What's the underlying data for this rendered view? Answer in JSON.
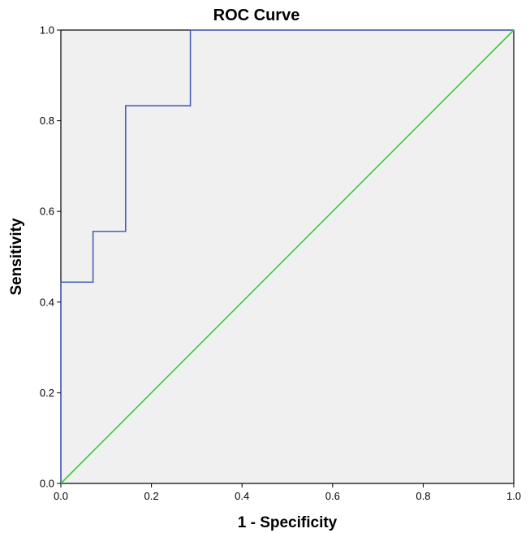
{
  "chart_data": {
    "type": "line",
    "title": "ROC Curve",
    "xlabel": "1 - Specificity",
    "ylabel": "Sensitivity",
    "xlim": [
      0.0,
      1.0
    ],
    "ylim": [
      0.0,
      1.0
    ],
    "x_ticks": [
      "0.0",
      "0.2",
      "0.4",
      "0.6",
      "0.8",
      "1.0"
    ],
    "y_ticks": [
      "0.0",
      "0.2",
      "0.4",
      "0.6",
      "0.8",
      "1.0"
    ],
    "grid": false,
    "background_color": "#f0f0f0",
    "series": [
      {
        "color": "#4a5fb4",
        "x": [
          0.0,
          0.0,
          0.071,
          0.071,
          0.143,
          0.143,
          0.286,
          0.286,
          1.0
        ],
        "y": [
          0.0,
          0.444,
          0.444,
          0.556,
          0.556,
          0.833,
          0.833,
          1.0,
          1.0
        ]
      },
      {
        "color": "#3cc83c",
        "x": [
          0.0,
          1.0
        ],
        "y": [
          0.0,
          1.0
        ]
      }
    ]
  }
}
